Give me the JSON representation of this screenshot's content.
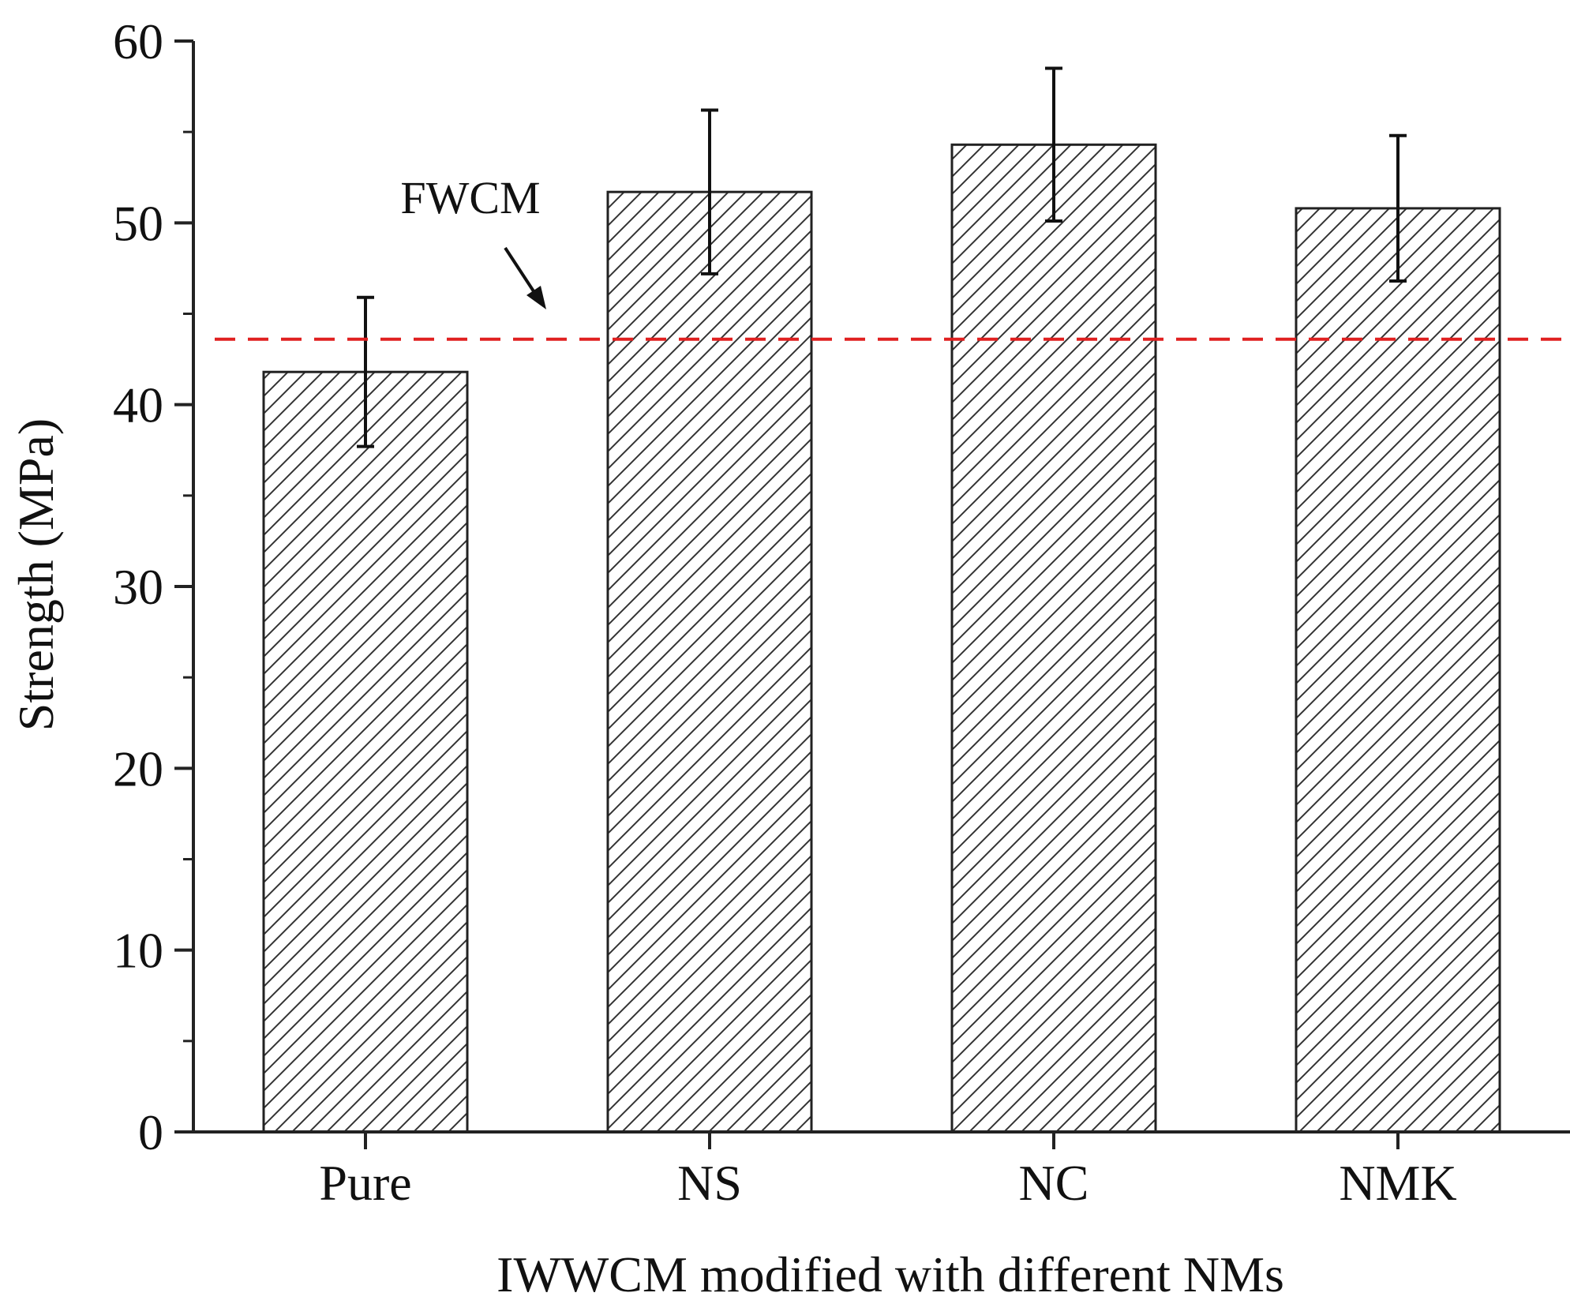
{
  "chart_data": {
    "type": "bar",
    "title": "",
    "xlabel": "IWWCM modified with different NMs",
    "ylabel": "Strength (MPa)",
    "categories": [
      "Pure",
      "NS",
      "NC",
      "NMK"
    ],
    "values": [
      41.8,
      51.7,
      54.3,
      50.8
    ],
    "errors": [
      4.1,
      4.5,
      4.2,
      4.0
    ],
    "ylim": [
      0,
      60
    ],
    "yticks": [
      0,
      10,
      20,
      30,
      40,
      50,
      60
    ],
    "ytick_labels": [
      "0",
      "10",
      "20",
      "30",
      "40",
      "50",
      "60"
    ],
    "bar_fill": "hatched",
    "reference_line": {
      "label": "FWCM",
      "value": 43.6,
      "color": "#e02020",
      "style": "dashed"
    },
    "grid": false,
    "legend": "none"
  }
}
